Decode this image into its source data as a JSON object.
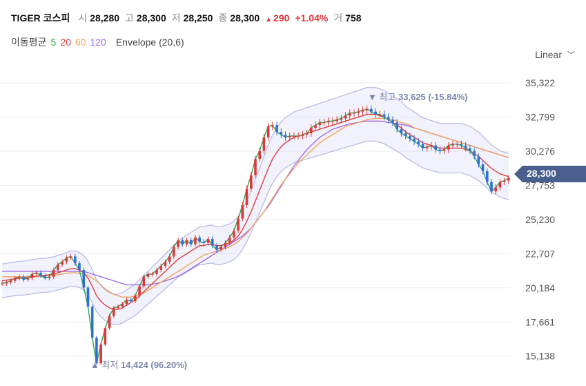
{
  "header": {
    "ticker": "TIGER 코스피",
    "open_label": "시",
    "open": "28,280",
    "high_label": "고",
    "high": "28,300",
    "low_label": "저",
    "low": "28,250",
    "close_label": "종",
    "close": "28,300",
    "change": "290",
    "change_pct": "+1.04%",
    "volume_label": "거",
    "volume": "758",
    "up_color": "#e0363a"
  },
  "legend": {
    "title": "이동평균",
    "periods": [
      {
        "label": "5",
        "color": "#2ca64f"
      },
      {
        "label": "20",
        "color": "#e03b3b"
      },
      {
        "label": "60",
        "color": "#f2a15b"
      },
      {
        "label": "120",
        "color": "#a06ae8"
      }
    ],
    "envelope": "Envelope (20,6)"
  },
  "scale_toggle": {
    "label": "Linear"
  },
  "price_tag": {
    "value": "28,300",
    "color": "#4a5f8f"
  },
  "chart_data": {
    "type": "candlestick",
    "y_ticks": [
      "35,322",
      "32,799",
      "30,276",
      "27,753",
      "25,230",
      "22,707",
      "20,184",
      "17,661",
      "15,138"
    ],
    "ylim": [
      13900,
      36600
    ],
    "max_annotation": {
      "label": "최고",
      "value": "33,625",
      "pct": "(-15.84%)"
    },
    "min_annotation": {
      "label": "최저",
      "value": "14,424",
      "pct": "(96.20%)"
    },
    "series_close": [
      20500,
      20600,
      20700,
      20900,
      21000,
      20800,
      20900,
      21200,
      21300,
      21100,
      20900,
      21000,
      21500,
      21900,
      22100,
      22400,
      22500,
      22000,
      21500,
      20200,
      18800,
      16500,
      14600,
      16000,
      17200,
      18100,
      18700,
      18800,
      19000,
      19300,
      19200,
      19600,
      20300,
      21000,
      21200,
      21200,
      21500,
      21800,
      22100,
      22500,
      23200,
      23700,
      23400,
      23700,
      23400,
      23900,
      23600,
      23500,
      23800,
      23300,
      23000,
      23200,
      23500,
      23900,
      24400,
      25300,
      26300,
      27500,
      28500,
      29700,
      30300,
      31300,
      32100,
      32200,
      31700,
      31500,
      31300,
      31400,
      31400,
      31400,
      31500,
      31600,
      32000,
      32200,
      32400,
      32400,
      32500,
      32500,
      32600,
      32700,
      32900,
      33100,
      33100,
      33200,
      33300,
      33400,
      33200,
      33000,
      33000,
      32800,
      32600,
      32400,
      31900,
      31600,
      31400,
      31200,
      31000,
      30800,
      30500,
      30600,
      30700,
      30400,
      30300,
      30400,
      30700,
      30800,
      30800,
      30700,
      30500,
      30300,
      29900,
      29300,
      28800,
      28000,
      27300,
      27600,
      28000,
      28100,
      28300
    ],
    "ma20": [
      20700,
      20750,
      20800,
      20850,
      20900,
      20900,
      20950,
      21000,
      21050,
      21100,
      21100,
      21150,
      21200,
      21300,
      21400,
      21500,
      21600,
      21600,
      21500,
      21300,
      20900,
      20300,
      19600,
      19200,
      18900,
      18700,
      18600,
      18600,
      18700,
      18900,
      19100,
      19300,
      19600,
      19900,
      20200,
      20500,
      20800,
      21100,
      21400,
      21700,
      22000,
      22300,
      22500,
      22700,
      22900,
      23100,
      23300,
      23300,
      23400,
      23400,
      23300,
      23300,
      23400,
      23500,
      23700,
      24000,
      24500,
      25100,
      25800,
      26600,
      27400,
      28200,
      29000,
      29700,
      30200,
      30600,
      30900,
      31100,
      31300,
      31400,
      31500,
      31600,
      31700,
      31800,
      31900,
      32000,
      32100,
      32200,
      32300,
      32400,
      32500,
      32600,
      32700,
      32800,
      32900,
      33000,
      33000,
      33000,
      32900,
      32800,
      32600,
      32400,
      32200,
      32000,
      31700,
      31500,
      31300,
      31100,
      30900,
      30800,
      30700,
      30600,
      30500,
      30500,
      30500,
      30500,
      30500,
      30500,
      30400,
      30300,
      30100,
      29900,
      29600,
      29300,
      29000,
      28800,
      28600,
      28500,
      28400
    ],
    "ma60": [
      21000,
      21000,
      21000,
      21000,
      21000,
      21000,
      21000,
      21000,
      21000,
      21000,
      21050,
      21100,
      21100,
      21150,
      21200,
      21250,
      21300,
      21300,
      21250,
      21200,
      21100,
      20900,
      20700,
      20400,
      20100,
      19900,
      19700,
      19600,
      19500,
      19500,
      19500,
      19600,
      19700,
      19800,
      20000,
      20200,
      20400,
      20600,
      20800,
      21000,
      21200,
      21400,
      21600,
      21800,
      22000,
      22200,
      22400,
      22600,
      22700,
      22800,
      22900,
      23000,
      23100,
      23200,
      23400,
      23600,
      23900,
      24200,
      24600,
      25000,
      25400,
      25800,
      26300,
      26800,
      27300,
      27800,
      28200,
      28600,
      29000,
      29400,
      29700,
      30000,
      30300,
      30600,
      30900,
      31100,
      31300,
      31500,
      31700,
      31900,
      32100,
      32200,
      32300,
      32400,
      32500,
      32600,
      32650,
      32700,
      32700,
      32700,
      32650,
      32600,
      32500,
      32400,
      32300,
      32200,
      32000,
      31900,
      31800,
      31700,
      31600,
      31500,
      31400,
      31300,
      31200,
      31100,
      31000,
      30900,
      30800,
      30700,
      30600,
      30500,
      30400,
      30300,
      30200,
      30100,
      30000,
      29900,
      29800
    ],
    "ma120": [
      21400,
      21400,
      21400,
      21400,
      21400,
      21400,
      21400,
      21400,
      21400,
      21400,
      21400,
      21400,
      21400,
      21400,
      21400,
      21400,
      21400,
      21400,
      21400,
      21400,
      21300,
      21200,
      21100,
      21000,
      20900,
      20800,
      20700,
      20600,
      20500,
      20400,
      20400,
      20400,
      20400,
      20400,
      20400,
      20450,
      20500,
      20600,
      20700,
      20800,
      20900,
      21050,
      21200,
      21400,
      21600,
      21800,
      22000,
      22200,
      22400,
      22600,
      22800,
      23000,
      23200,
      23400,
      23600,
      23800,
      24000,
      24300,
      24600,
      25000,
      25400,
      25800,
      26200,
      26700,
      27200,
      27700,
      28200,
      28700,
      29200,
      29600,
      30000,
      30400,
      30700,
      31000,
      31300,
      31500,
      31700,
      31900,
      32000,
      32100,
      32200,
      32300,
      32350,
      32400,
      32450,
      32500,
      32500,
      32500,
      32500,
      32450,
      32400,
      32350,
      32300,
      32250,
      32200,
      32100,
      32000,
      31900,
      31800,
      31700,
      31600,
      31500,
      31400,
      31300,
      31200,
      31100,
      31000,
      30900,
      30800,
      30700,
      30600,
      30500,
      30400,
      30300,
      30200,
      30100,
      30000,
      29900,
      29800
    ]
  }
}
